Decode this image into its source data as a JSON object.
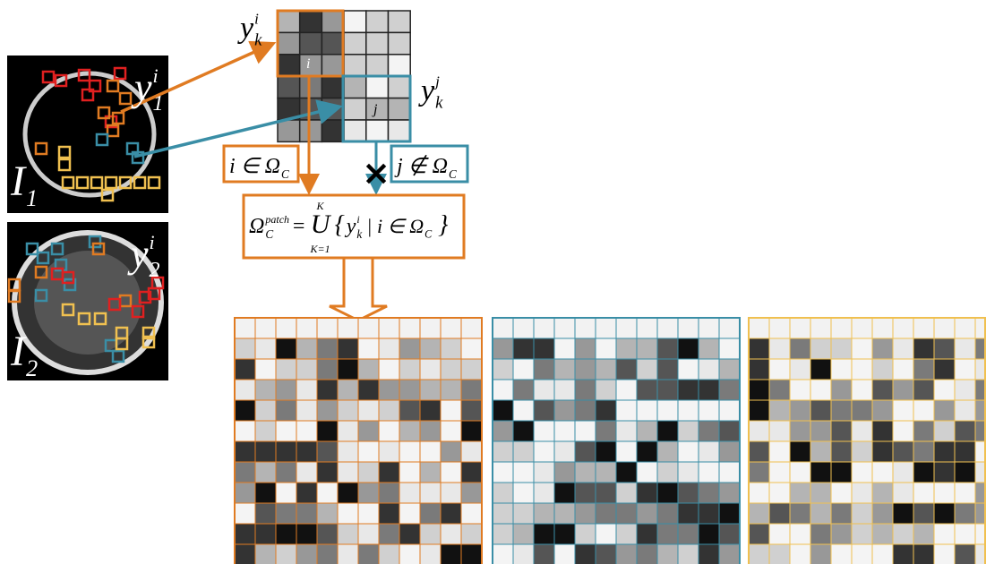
{
  "top_grid": {
    "row_label": {
      "base": "y",
      "sup": "i",
      "sub": "k"
    },
    "col_label": {
      "base": "y",
      "sup": "j",
      "sub": "k"
    },
    "cell_i": "i",
    "cell_j": "j"
  },
  "images": [
    {
      "label": {
        "base": "I",
        "sub": "1"
      },
      "patch_label": {
        "base": "y",
        "sup": "i",
        "sub": "1"
      }
    },
    {
      "label": {
        "base": "I",
        "sub": "2"
      },
      "patch_label": {
        "base": "y",
        "sup": "i",
        "sub": "2"
      }
    }
  ],
  "conditions": {
    "in": {
      "base": "i ∈ Ω",
      "sub": "C"
    },
    "not_in": {
      "base": "j ∉ Ω",
      "sub": "C"
    }
  },
  "blocked": "×",
  "formula": {
    "lhs": {
      "base": "Ω",
      "sub": "C",
      "sup": "patch"
    },
    "eq": "=",
    "union": {
      "symbol": "U",
      "upper": "K",
      "lower": "K=1"
    },
    "open": "{",
    "term": {
      "base": "y",
      "sub": "k",
      "sup": "i"
    },
    "condition": {
      "base": "| i ∈ Ω",
      "sub": "C"
    },
    "close": "}"
  }
}
